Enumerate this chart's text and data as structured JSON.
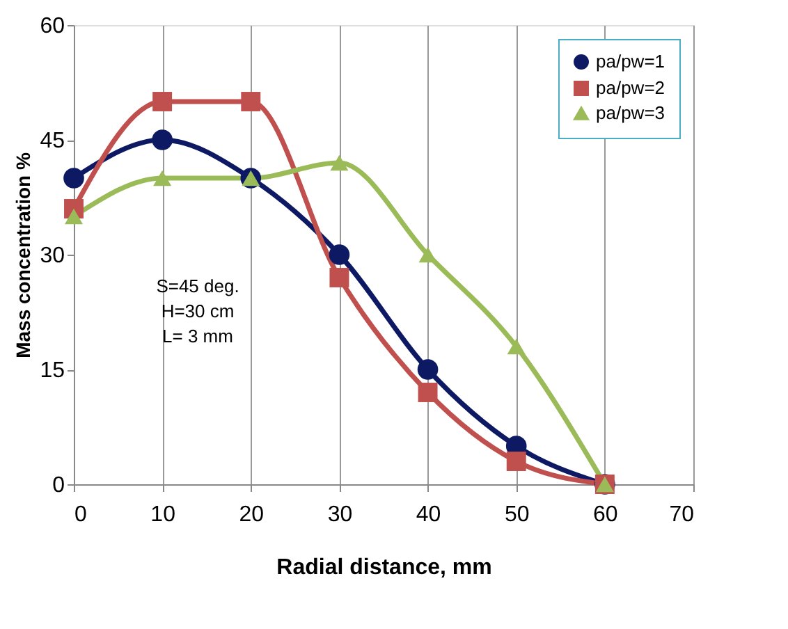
{
  "chart_data": {
    "type": "line",
    "x": [
      0,
      10,
      20,
      30,
      40,
      50,
      60
    ],
    "series": [
      {
        "name": "pa/pw=1",
        "color": "#0d1a63",
        "values": [
          40,
          45,
          40,
          30,
          15,
          5,
          0
        ],
        "marker": "circle"
      },
      {
        "name": "pa/pw=2",
        "color": "#c0504d",
        "values": [
          36,
          50,
          50,
          27,
          12,
          3,
          0
        ],
        "marker": "square"
      },
      {
        "name": "pa/pw=3",
        "color": "#9bbb59",
        "values": [
          35,
          40,
          40,
          42,
          30,
          18,
          0
        ],
        "marker": "triangle"
      }
    ],
    "xlabel": "Radial distance, mm",
    "ylabel": "Mass concentration %",
    "xlim": [
      0,
      70
    ],
    "xticks": [
      0,
      10,
      20,
      30,
      40,
      50,
      60,
      70
    ],
    "ylim": [
      0,
      60
    ],
    "yticks": [
      0,
      15,
      30,
      45,
      60
    ],
    "grid": "x",
    "legend": "top right",
    "annotations": [
      "S=45 deg.",
      "H=30 cm",
      "L= 3 mm"
    ]
  }
}
